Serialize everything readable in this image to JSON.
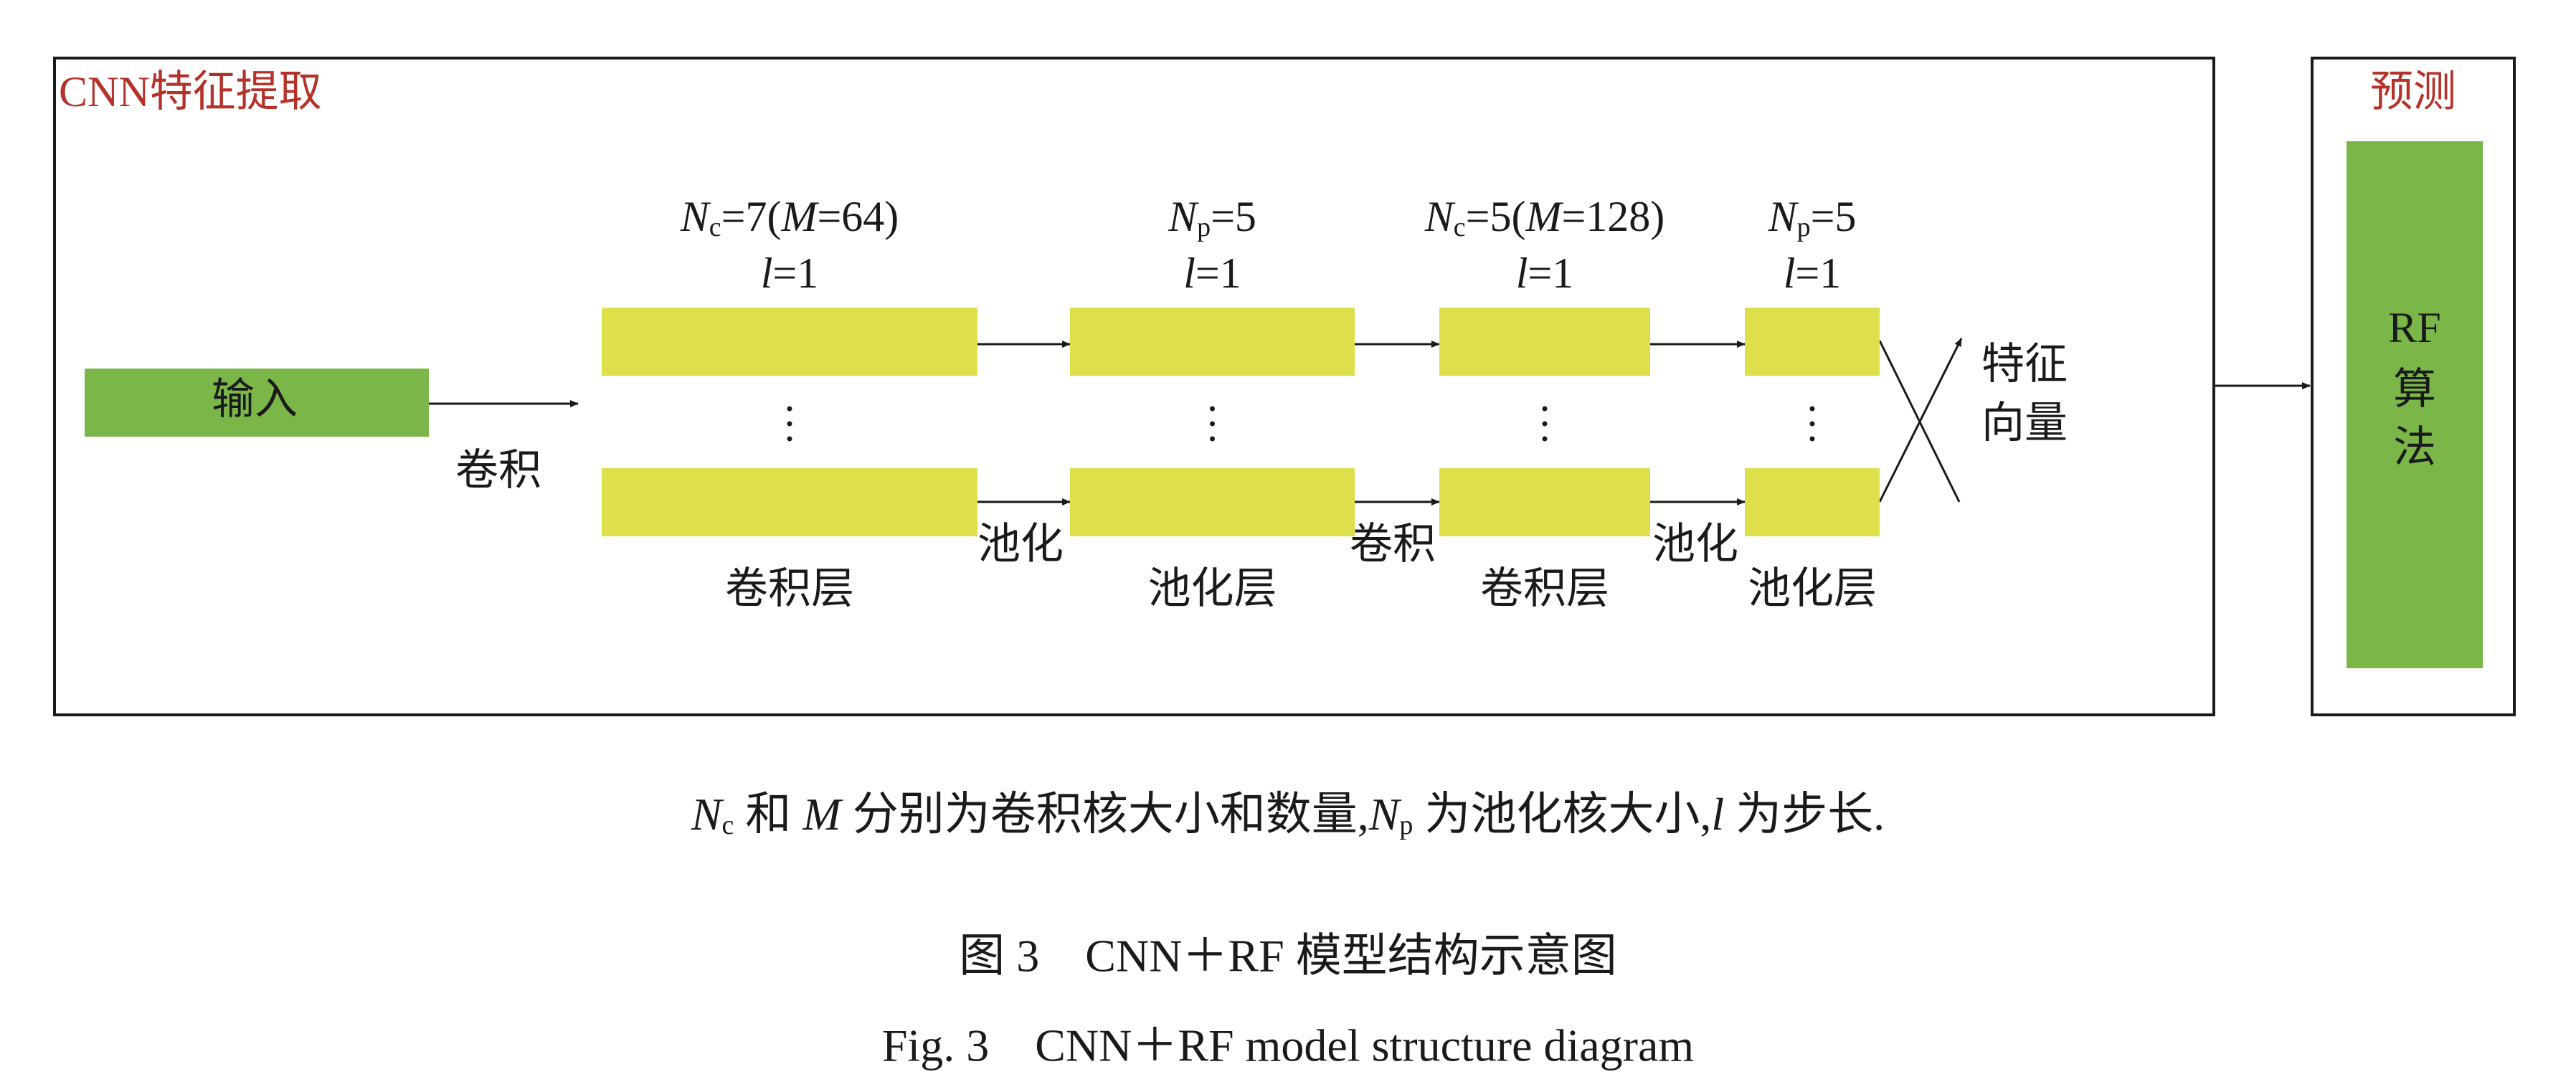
{
  "feature_extraction": {
    "title": "CNN特征提取",
    "input": "输入",
    "input_op": "卷积",
    "layers": [
      {
        "param_line1": [
          "N",
          "c",
          "=7(",
          "M",
          "=64)"
        ],
        "param_line2": [
          "l",
          "=1"
        ],
        "name": "卷积层"
      },
      {
        "param_line1": [
          "N",
          "p",
          "=5"
        ],
        "param_line2": [
          "l",
          "=1"
        ],
        "name": "池化层"
      },
      {
        "param_line1": [
          "N",
          "c",
          "=5(",
          "M",
          "=128)"
        ],
        "param_line2": [
          "l",
          "=1"
        ],
        "name": "卷积层"
      },
      {
        "param_line1": [
          "N",
          "p",
          "=5"
        ],
        "param_line2": [
          "l",
          "=1"
        ],
        "name": "池化层"
      }
    ],
    "between_ops": [
      "池化",
      "卷积",
      "池化"
    ],
    "output": [
      "特征",
      "向量"
    ]
  },
  "prediction": {
    "title": "预测",
    "model": [
      "RF",
      "算",
      "法"
    ]
  },
  "note": [
    "N",
    "c",
    " 和 ",
    "M",
    " 分别为卷积核大小和数量,",
    "N",
    "p",
    " 为池化核大小,",
    "l",
    " 为步长."
  ],
  "caption_cn": "图 3　CNN＋RF 模型结构示意图",
  "caption_en": "Fig. 3　CNN＋RF model structure diagram"
}
